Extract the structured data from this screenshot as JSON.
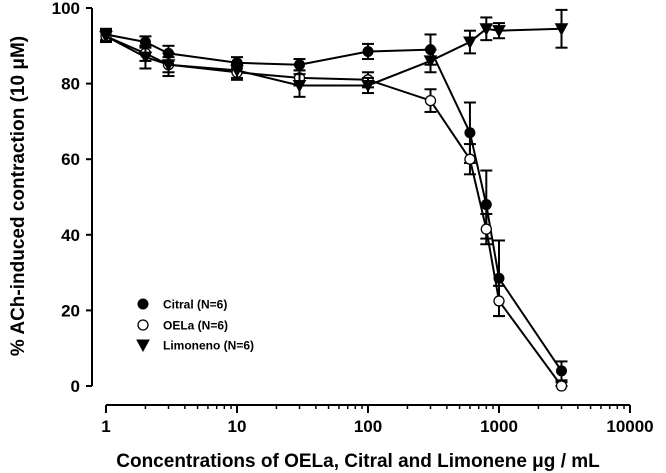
{
  "chart_data": {
    "type": "line",
    "title": "",
    "xlabel": "Concentrations of OELa, Citral and Limonene μg / mL",
    "ylabel": "% ACh-induced contraction (10 μM)",
    "xscale": "log",
    "xlim": [
      1,
      10000
    ],
    "ylim": [
      0,
      100
    ],
    "xticks": [
      1,
      10,
      100,
      1000,
      10000
    ],
    "xtick_labels": [
      "1",
      "10",
      "100",
      "1000",
      "10000"
    ],
    "yticks": [
      0,
      20,
      40,
      60,
      80,
      100
    ],
    "ytick_labels": [
      "0",
      "20",
      "40",
      "60",
      "80",
      "100"
    ],
    "grid": false,
    "legend_position": "bottom-left",
    "series": [
      {
        "name": "Citral (N=6)",
        "marker": "filled-circle",
        "x": [
          1,
          2,
          3,
          10,
          30,
          100,
          300,
          600,
          800,
          1000,
          3000
        ],
        "y": [
          93,
          91,
          88,
          85.5,
          85,
          88.5,
          89,
          67,
          48,
          28.5,
          4
        ],
        "err": [
          1.5,
          1.5,
          2,
          1.5,
          1.5,
          2,
          4,
          8,
          9,
          10,
          2.5
        ]
      },
      {
        "name": "OELa (N=6)",
        "marker": "open-circle",
        "x": [
          1,
          2,
          3,
          10,
          30,
          100,
          300,
          600,
          800,
          1000,
          3000
        ],
        "y": [
          92.5,
          88,
          85,
          83,
          81.5,
          81,
          75.5,
          60,
          41.5,
          22.5,
          0
        ],
        "err": [
          1.5,
          2,
          2,
          2,
          2,
          2,
          3,
          4,
          4,
          4,
          1
        ]
      },
      {
        "name": "Limoneno  (N=6)",
        "marker": "filled-triangle-down",
        "x": [
          1,
          2,
          3,
          10,
          30,
          100,
          300,
          600,
          800,
          1000,
          3000
        ],
        "y": [
          92.5,
          87,
          85,
          83.5,
          79.5,
          79.5,
          86,
          91,
          94.5,
          94,
          94.5
        ],
        "err": [
          1.5,
          3,
          3,
          2,
          3,
          2,
          3,
          3,
          3,
          2,
          5
        ]
      }
    ]
  }
}
